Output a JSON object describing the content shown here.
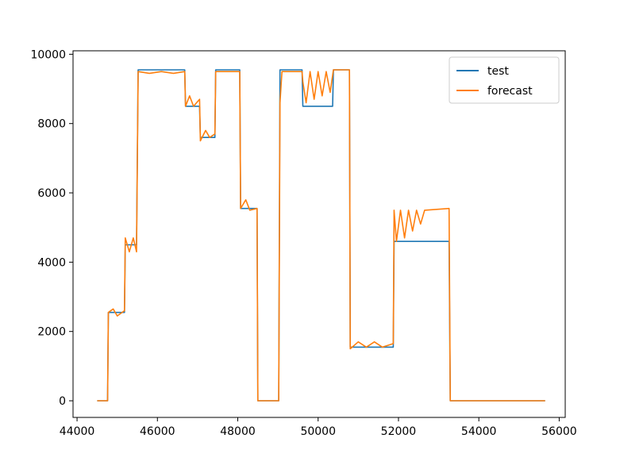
{
  "chart_data": {
    "type": "line",
    "title": "",
    "xlabel": "",
    "ylabel": "",
    "xlim": [
      43900,
      56150
    ],
    "ylim": [
      -480,
      10100
    ],
    "xticks": [
      44000,
      46000,
      48000,
      50000,
      52000,
      54000,
      56000
    ],
    "yticks": [
      0,
      2000,
      4000,
      6000,
      8000,
      10000
    ],
    "grid": false,
    "legend_position": "upper right",
    "series": [
      {
        "name": "test",
        "color": "#1f77b4",
        "points": [
          [
            44500,
            0
          ],
          [
            44760,
            0
          ],
          [
            44780,
            2550
          ],
          [
            45180,
            2550
          ],
          [
            45200,
            4500
          ],
          [
            45480,
            4500
          ],
          [
            45520,
            9550
          ],
          [
            46680,
            9550
          ],
          [
            46700,
            8500
          ],
          [
            47050,
            8500
          ],
          [
            47070,
            7600
          ],
          [
            47430,
            7600
          ],
          [
            47450,
            9550
          ],
          [
            48050,
            9550
          ],
          [
            48070,
            5550
          ],
          [
            48480,
            5550
          ],
          [
            48500,
            0
          ],
          [
            49020,
            0
          ],
          [
            49050,
            9550
          ],
          [
            49600,
            9550
          ],
          [
            49620,
            8500
          ],
          [
            50360,
            8500
          ],
          [
            50380,
            9550
          ],
          [
            50780,
            9550
          ],
          [
            50800,
            1550
          ],
          [
            51870,
            1550
          ],
          [
            51890,
            4600
          ],
          [
            53260,
            4600
          ],
          [
            53290,
            0
          ],
          [
            55650,
            0
          ]
        ]
      },
      {
        "name": "forecast",
        "color": "#ff7f0e",
        "points": [
          [
            44500,
            0
          ],
          [
            44760,
            0
          ],
          [
            44780,
            2550
          ],
          [
            44900,
            2650
          ],
          [
            45000,
            2450
          ],
          [
            45180,
            2600
          ],
          [
            45200,
            4700
          ],
          [
            45300,
            4300
          ],
          [
            45400,
            4700
          ],
          [
            45480,
            4300
          ],
          [
            45520,
            9500
          ],
          [
            45800,
            9450
          ],
          [
            46100,
            9500
          ],
          [
            46400,
            9450
          ],
          [
            46680,
            9500
          ],
          [
            46700,
            8500
          ],
          [
            46800,
            8800
          ],
          [
            46900,
            8500
          ],
          [
            47050,
            8700
          ],
          [
            47070,
            7500
          ],
          [
            47200,
            7800
          ],
          [
            47300,
            7600
          ],
          [
            47430,
            7700
          ],
          [
            47450,
            9500
          ],
          [
            48050,
            9500
          ],
          [
            48070,
            5550
          ],
          [
            48200,
            5800
          ],
          [
            48300,
            5500
          ],
          [
            48480,
            5550
          ],
          [
            48500,
            0
          ],
          [
            49020,
            0
          ],
          [
            49050,
            8600
          ],
          [
            49100,
            9500
          ],
          [
            49600,
            9500
          ],
          [
            49620,
            9200
          ],
          [
            49700,
            8600
          ],
          [
            49800,
            9500
          ],
          [
            49900,
            8700
          ],
          [
            50000,
            9500
          ],
          [
            50100,
            8800
          ],
          [
            50200,
            9500
          ],
          [
            50300,
            8900
          ],
          [
            50380,
            9550
          ],
          [
            50780,
            9550
          ],
          [
            50800,
            1500
          ],
          [
            51000,
            1700
          ],
          [
            51200,
            1550
          ],
          [
            51400,
            1700
          ],
          [
            51600,
            1550
          ],
          [
            51870,
            1650
          ],
          [
            51890,
            5500
          ],
          [
            51950,
            4600
          ],
          [
            52050,
            5500
          ],
          [
            52150,
            4700
          ],
          [
            52250,
            5500
          ],
          [
            52350,
            4900
          ],
          [
            52450,
            5500
          ],
          [
            52550,
            5100
          ],
          [
            52650,
            5500
          ],
          [
            53260,
            5550
          ],
          [
            53290,
            0
          ],
          [
            55650,
            0
          ]
        ]
      }
    ]
  }
}
